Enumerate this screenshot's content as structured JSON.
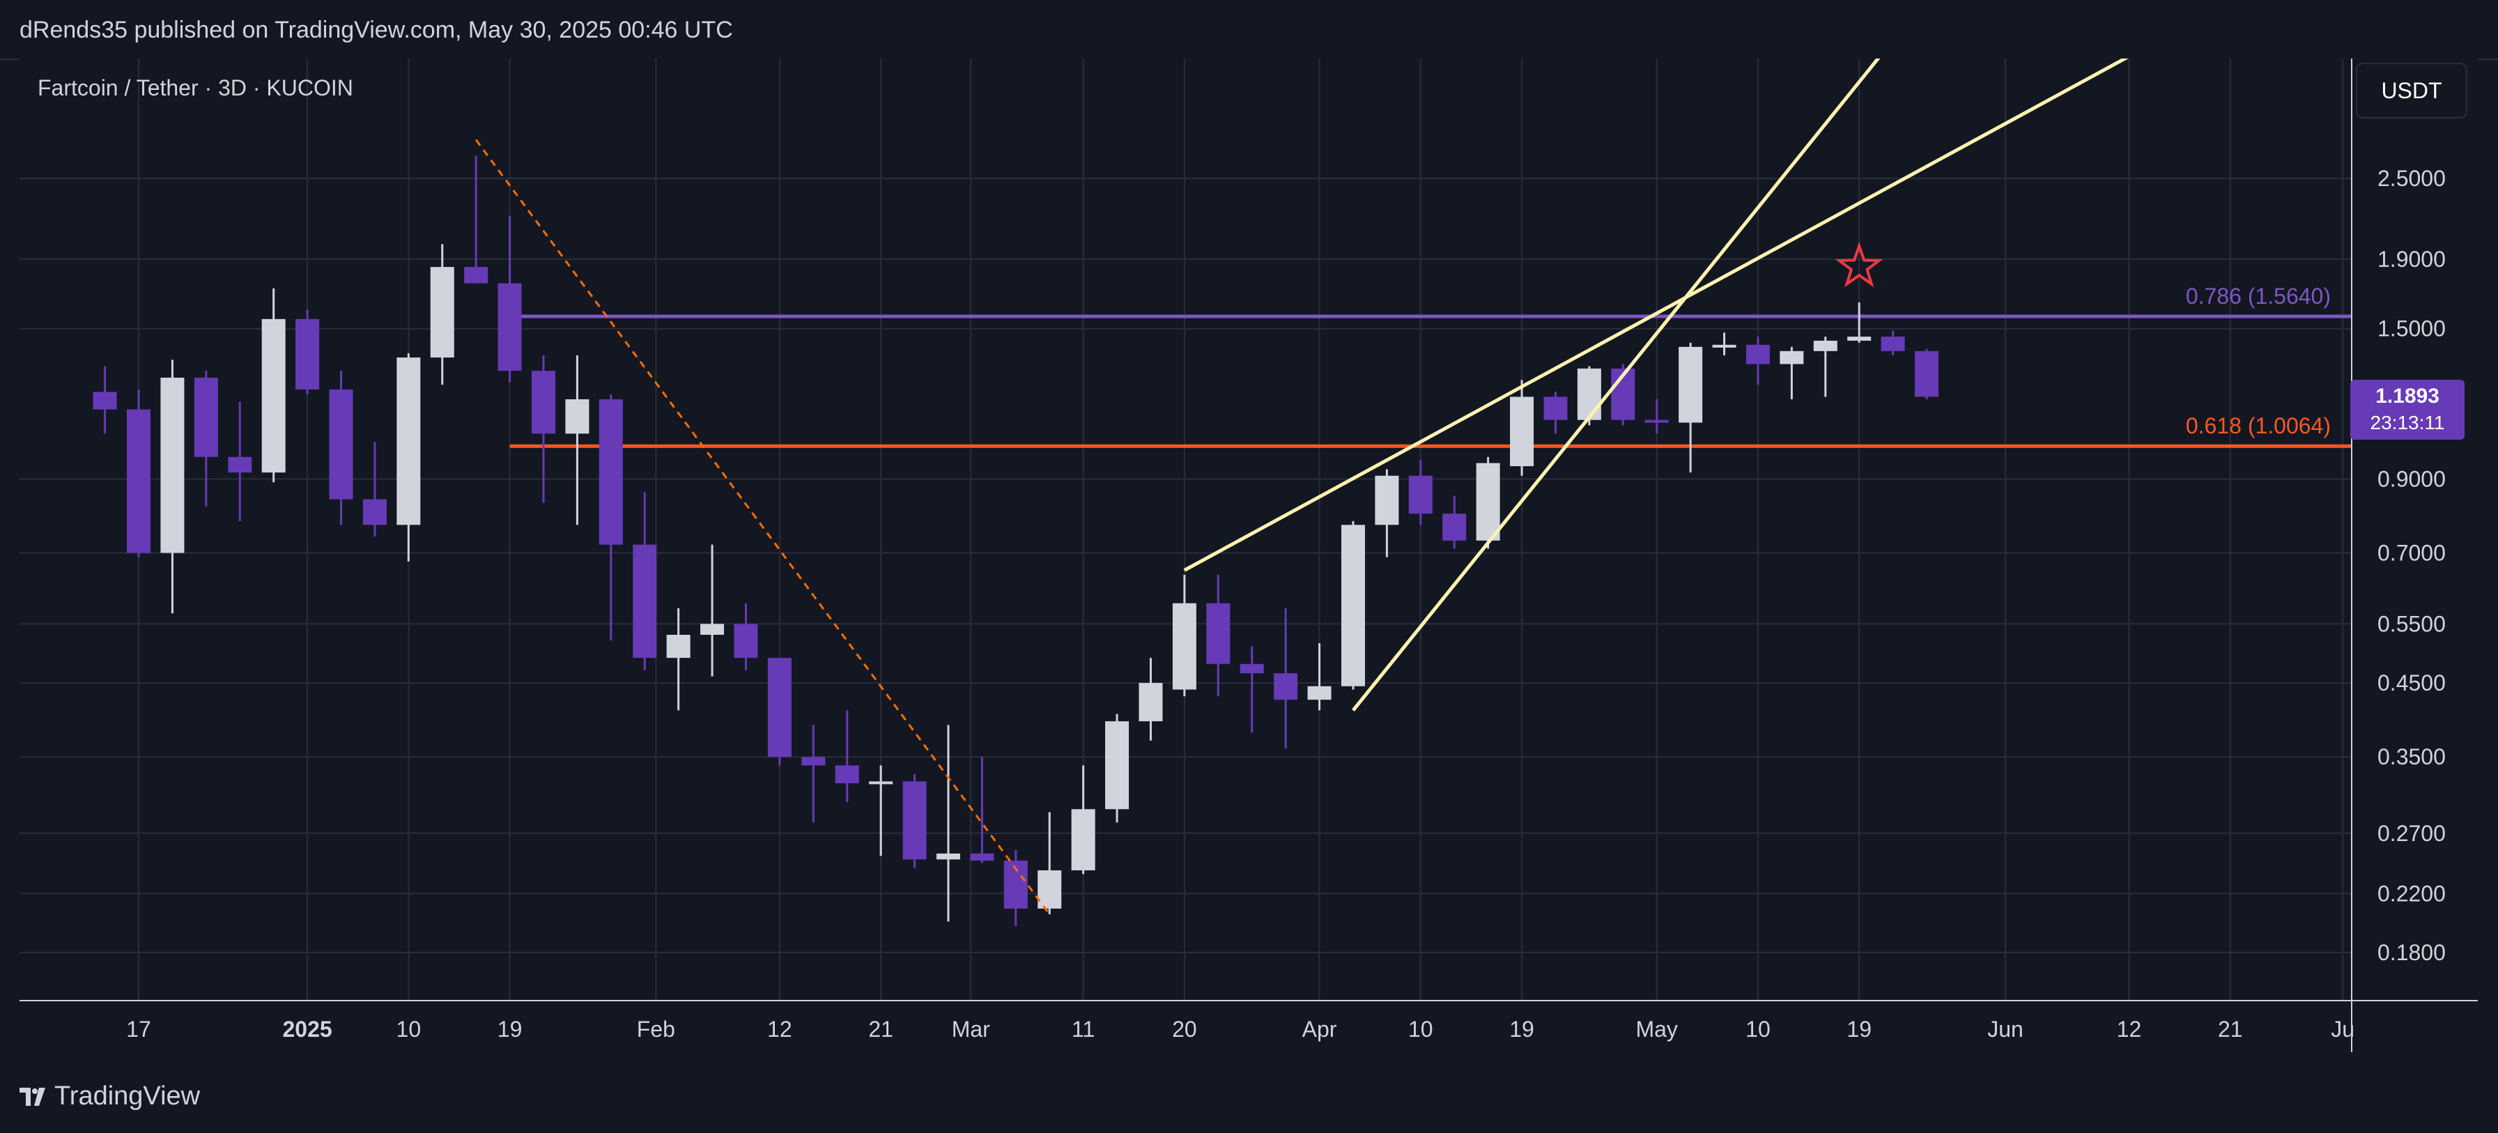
{
  "header": {
    "publish_line": "dRends35 published on TradingView.com, May 30, 2025 00:46 UTC"
  },
  "chart_header": {
    "symbol_title": "Fartcoin / Tether · 3D · KUCOIN",
    "currency_button": "USDT"
  },
  "price_tag": {
    "price": "1.1893",
    "countdown": "23:13:11"
  },
  "footer": {
    "logo_text": "TradingView"
  },
  "colors": {
    "background": "#131722",
    "grid": "#2a2e39",
    "up_candle": "#d1d4dc",
    "down_candle": "#673ab7",
    "fib_0786": "#7e57c2",
    "fib_0618": "#ff5722",
    "trendline": "#fff3b0",
    "dashed_line": "#ff6d00",
    "star": "#f23645"
  },
  "chart_data": {
    "type": "candlestick",
    "title": "Fartcoin / Tether · 3D · KUCOIN",
    "interval": "3D",
    "y_scale": "log",
    "ylim": [
      0.15,
      3.6
    ],
    "y_ticks": [
      "2.5000",
      "1.9000",
      "1.5000",
      "0.9000",
      "0.7000",
      "0.5500",
      "0.4500",
      "0.3500",
      "0.2700",
      "0.2200",
      "0.1800"
    ],
    "x_ticks": [
      "17",
      "2025",
      "10",
      "19",
      "Feb",
      "12",
      "21",
      "Mar",
      "11",
      "20",
      "Apr",
      "10",
      "19",
      "May",
      "10",
      "19",
      "Jun",
      "12",
      "21",
      "Ju"
    ],
    "candles": [
      {
        "t": "2024-12-14",
        "o": 1.21,
        "h": 1.32,
        "l": 1.05,
        "c": 1.14
      },
      {
        "t": "2024-12-17",
        "o": 1.14,
        "h": 1.22,
        "l": 0.69,
        "c": 0.7
      },
      {
        "t": "2024-12-20",
        "o": 0.7,
        "h": 1.35,
        "l": 0.57,
        "c": 1.27
      },
      {
        "t": "2024-12-23",
        "o": 1.27,
        "h": 1.3,
        "l": 0.82,
        "c": 0.97
      },
      {
        "t": "2024-12-26",
        "o": 0.97,
        "h": 1.17,
        "l": 0.78,
        "c": 0.92
      },
      {
        "t": "2024-12-29",
        "o": 0.92,
        "h": 1.72,
        "l": 0.89,
        "c": 1.55
      },
      {
        "t": "2025-01-01",
        "o": 1.55,
        "h": 1.6,
        "l": 1.2,
        "c": 1.22
      },
      {
        "t": "2025-01-04",
        "o": 1.22,
        "h": 1.3,
        "l": 0.77,
        "c": 0.84
      },
      {
        "t": "2025-01-07",
        "o": 0.84,
        "h": 1.02,
        "l": 0.74,
        "c": 0.77
      },
      {
        "t": "2025-01-10",
        "o": 0.77,
        "h": 1.38,
        "l": 0.68,
        "c": 1.36
      },
      {
        "t": "2025-01-13",
        "o": 1.36,
        "h": 2.0,
        "l": 1.24,
        "c": 1.85
      },
      {
        "t": "2025-01-16",
        "o": 1.85,
        "h": 2.7,
        "l": 1.76,
        "c": 1.75
      },
      {
        "t": "2025-01-19",
        "o": 1.75,
        "h": 2.2,
        "l": 1.25,
        "c": 1.3
      },
      {
        "t": "2025-01-22",
        "o": 1.3,
        "h": 1.37,
        "l": 0.83,
        "c": 1.05
      },
      {
        "t": "2025-01-25",
        "o": 1.05,
        "h": 1.37,
        "l": 0.77,
        "c": 1.18
      },
      {
        "t": "2025-01-28",
        "o": 1.18,
        "h": 1.2,
        "l": 0.52,
        "c": 0.72
      },
      {
        "t": "2025-01-31",
        "o": 0.72,
        "h": 0.86,
        "l": 0.47,
        "c": 0.49
      },
      {
        "t": "2025-02-03",
        "o": 0.49,
        "h": 0.58,
        "l": 0.41,
        "c": 0.53
      },
      {
        "t": "2025-02-06",
        "o": 0.53,
        "h": 0.72,
        "l": 0.46,
        "c": 0.55
      },
      {
        "t": "2025-02-09",
        "o": 0.55,
        "h": 0.59,
        "l": 0.47,
        "c": 0.49
      },
      {
        "t": "2025-02-12",
        "o": 0.49,
        "h": 0.49,
        "l": 0.34,
        "c": 0.35
      },
      {
        "t": "2025-02-15",
        "o": 0.35,
        "h": 0.39,
        "l": 0.28,
        "c": 0.34
      },
      {
        "t": "2025-02-18",
        "o": 0.34,
        "h": 0.41,
        "l": 0.3,
        "c": 0.32
      },
      {
        "t": "2025-02-21",
        "o": 0.32,
        "h": 0.34,
        "l": 0.25,
        "c": 0.322
      },
      {
        "t": "2025-02-24",
        "o": 0.322,
        "h": 0.33,
        "l": 0.24,
        "c": 0.247
      },
      {
        "t": "2025-02-27",
        "o": 0.247,
        "h": 0.39,
        "l": 0.2,
        "c": 0.252
      },
      {
        "t": "2025-03-02",
        "o": 0.252,
        "h": 0.35,
        "l": 0.244,
        "c": 0.246
      },
      {
        "t": "2025-03-05",
        "o": 0.246,
        "h": 0.255,
        "l": 0.197,
        "c": 0.209
      },
      {
        "t": "2025-03-08",
        "o": 0.209,
        "h": 0.29,
        "l": 0.205,
        "c": 0.238
      },
      {
        "t": "2025-03-11",
        "o": 0.238,
        "h": 0.34,
        "l": 0.235,
        "c": 0.293
      },
      {
        "t": "2025-03-14",
        "o": 0.293,
        "h": 0.405,
        "l": 0.28,
        "c": 0.395
      },
      {
        "t": "2025-03-17",
        "o": 0.395,
        "h": 0.49,
        "l": 0.37,
        "c": 0.45
      },
      {
        "t": "2025-03-20",
        "o": 0.44,
        "h": 0.65,
        "l": 0.43,
        "c": 0.59
      },
      {
        "t": "2025-03-23",
        "o": 0.59,
        "h": 0.65,
        "l": 0.43,
        "c": 0.48
      },
      {
        "t": "2025-03-26",
        "o": 0.48,
        "h": 0.51,
        "l": 0.38,
        "c": 0.465
      },
      {
        "t": "2025-03-29",
        "o": 0.465,
        "h": 0.58,
        "l": 0.36,
        "c": 0.425
      },
      {
        "t": "2025-04-01",
        "o": 0.425,
        "h": 0.515,
        "l": 0.41,
        "c": 0.445
      },
      {
        "t": "2025-04-04",
        "o": 0.445,
        "h": 0.78,
        "l": 0.44,
        "c": 0.77
      },
      {
        "t": "2025-04-07",
        "o": 0.77,
        "h": 0.93,
        "l": 0.69,
        "c": 0.91
      },
      {
        "t": "2025-04-10",
        "o": 0.91,
        "h": 0.96,
        "l": 0.77,
        "c": 0.8
      },
      {
        "t": "2025-04-13",
        "o": 0.8,
        "h": 0.85,
        "l": 0.71,
        "c": 0.73
      },
      {
        "t": "2025-04-16",
        "o": 0.73,
        "h": 0.97,
        "l": 0.71,
        "c": 0.95
      },
      {
        "t": "2025-04-19",
        "o": 0.94,
        "h": 1.26,
        "l": 0.91,
        "c": 1.19
      },
      {
        "t": "2025-04-22",
        "o": 1.19,
        "h": 1.21,
        "l": 1.05,
        "c": 1.1
      },
      {
        "t": "2025-04-25",
        "o": 1.1,
        "h": 1.32,
        "l": 1.08,
        "c": 1.31
      },
      {
        "t": "2025-04-28",
        "o": 1.31,
        "h": 1.33,
        "l": 1.08,
        "c": 1.1
      },
      {
        "t": "2025-05-01",
        "o": 1.1,
        "h": 1.18,
        "l": 1.05,
        "c": 1.09
      },
      {
        "t": "2025-05-04",
        "o": 1.09,
        "h": 1.43,
        "l": 0.92,
        "c": 1.41
      },
      {
        "t": "2025-05-07",
        "o": 1.41,
        "h": 1.48,
        "l": 1.37,
        "c": 1.42
      },
      {
        "t": "2025-05-10",
        "o": 1.42,
        "h": 1.46,
        "l": 1.24,
        "c": 1.33
      },
      {
        "t": "2025-05-13",
        "o": 1.33,
        "h": 1.41,
        "l": 1.18,
        "c": 1.39
      },
      {
        "t": "2025-05-16",
        "o": 1.39,
        "h": 1.46,
        "l": 1.19,
        "c": 1.44
      },
      {
        "t": "2025-05-19",
        "o": 1.44,
        "h": 1.64,
        "l": 1.43,
        "c": 1.46
      },
      {
        "t": "2025-05-22",
        "o": 1.46,
        "h": 1.49,
        "l": 1.37,
        "c": 1.39
      },
      {
        "t": "2025-05-25",
        "o": 1.39,
        "h": 1.4,
        "l": 1.18,
        "c": 1.19
      }
    ],
    "fib_levels": [
      {
        "label": "0.786 (1.5640)",
        "value": 1.564
      },
      {
        "label": "0.618 (1.0064)",
        "value": 1.0064
      }
    ],
    "drawings": {
      "dashed_line": [
        {
          "t": "2025-01-16",
          "v": 2.85
        },
        {
          "t": "2025-03-08",
          "v": 0.205
        }
      ],
      "trendlines": [
        [
          {
            "t": "2025-03-20",
            "v": 0.66
          },
          {
            "t": "2025-06-17",
            "v": 4.2
          }
        ],
        [
          {
            "t": "2025-04-04",
            "v": 0.41
          },
          {
            "t": "2025-05-22",
            "v": 4.0
          }
        ]
      ],
      "star": {
        "t": "2025-05-19",
        "v": 1.85
      }
    }
  }
}
